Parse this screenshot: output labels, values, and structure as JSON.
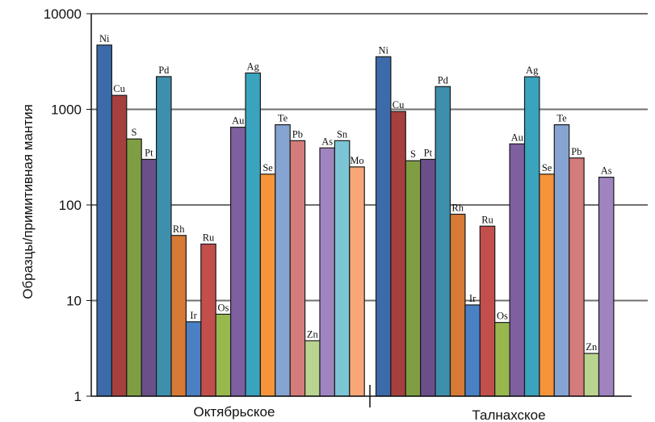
{
  "chart_data": {
    "type": "bar",
    "title": "",
    "xlabel": "",
    "ylabel": "Образцы/примитивная мантия",
    "yscale": "log",
    "ylim": [
      1,
      10000
    ],
    "yticks": [
      "1",
      "10",
      "100",
      "1000",
      "10000"
    ],
    "grid": true,
    "legend": "none",
    "groups": [
      {
        "name": "Октябрьское",
        "bars": [
          {
            "element": "Ni",
            "value": 4700,
            "color": "#3d6aa8"
          },
          {
            "element": "Cu",
            "value": 1400,
            "color": "#a5403f"
          },
          {
            "element": "S",
            "value": 490,
            "color": "#7f9d43"
          },
          {
            "element": "Pt",
            "value": 300,
            "color": "#6a4f8a"
          },
          {
            "element": "Pd",
            "value": 2200,
            "color": "#3d8fab"
          },
          {
            "element": "Rh",
            "value": 48,
            "color": "#d67a36"
          },
          {
            "element": "Ir",
            "value": 6,
            "color": "#4a80c4"
          },
          {
            "element": "Ru",
            "value": 39,
            "color": "#c24f4c"
          },
          {
            "element": "Os",
            "value": 7.2,
            "color": "#98b84e"
          },
          {
            "element": "Au",
            "value": 650,
            "color": "#7e5fa0"
          },
          {
            "element": "Ag",
            "value": 2400,
            "color": "#3aa3be"
          },
          {
            "element": "Se",
            "value": 210,
            "color": "#f79339"
          },
          {
            "element": "Te",
            "value": 690,
            "color": "#86a4d2"
          },
          {
            "element": "Pb",
            "value": 470,
            "color": "#d47b7b"
          },
          {
            "element": "Zn",
            "value": 3.8,
            "color": "#b8d48e"
          },
          {
            "element": "As",
            "value": 395,
            "color": "#a084c0"
          },
          {
            "element": "Sn",
            "value": 470,
            "color": "#7cc5d5"
          },
          {
            "element": "Mo",
            "value": 250,
            "color": "#f9a779"
          }
        ]
      },
      {
        "name": "Талнахское",
        "bars": [
          {
            "element": "Ni",
            "value": 3550,
            "color": "#3d6aa8"
          },
          {
            "element": "Cu",
            "value": 950,
            "color": "#a5403f"
          },
          {
            "element": "S",
            "value": 290,
            "color": "#7f9d43"
          },
          {
            "element": "Pt",
            "value": 300,
            "color": "#6a4f8a"
          },
          {
            "element": "Pd",
            "value": 1730,
            "color": "#3d8fab"
          },
          {
            "element": "Rh",
            "value": 80,
            "color": "#d67a36"
          },
          {
            "element": "Ir",
            "value": 9,
            "color": "#4a80c4"
          },
          {
            "element": "Ru",
            "value": 60,
            "color": "#c24f4c"
          },
          {
            "element": "Os",
            "value": 5.9,
            "color": "#98b84e"
          },
          {
            "element": "Au",
            "value": 435,
            "color": "#7e5fa0"
          },
          {
            "element": "Ag",
            "value": 2190,
            "color": "#3aa3be"
          },
          {
            "element": "Se",
            "value": 210,
            "color": "#f79339"
          },
          {
            "element": "Te",
            "value": 690,
            "color": "#86a4d2"
          },
          {
            "element": "Pb",
            "value": 310,
            "color": "#d47b7b"
          },
          {
            "element": "Zn",
            "value": 2.8,
            "color": "#b8d48e"
          },
          {
            "element": "As",
            "value": 195,
            "color": "#a084c0"
          }
        ]
      }
    ]
  }
}
